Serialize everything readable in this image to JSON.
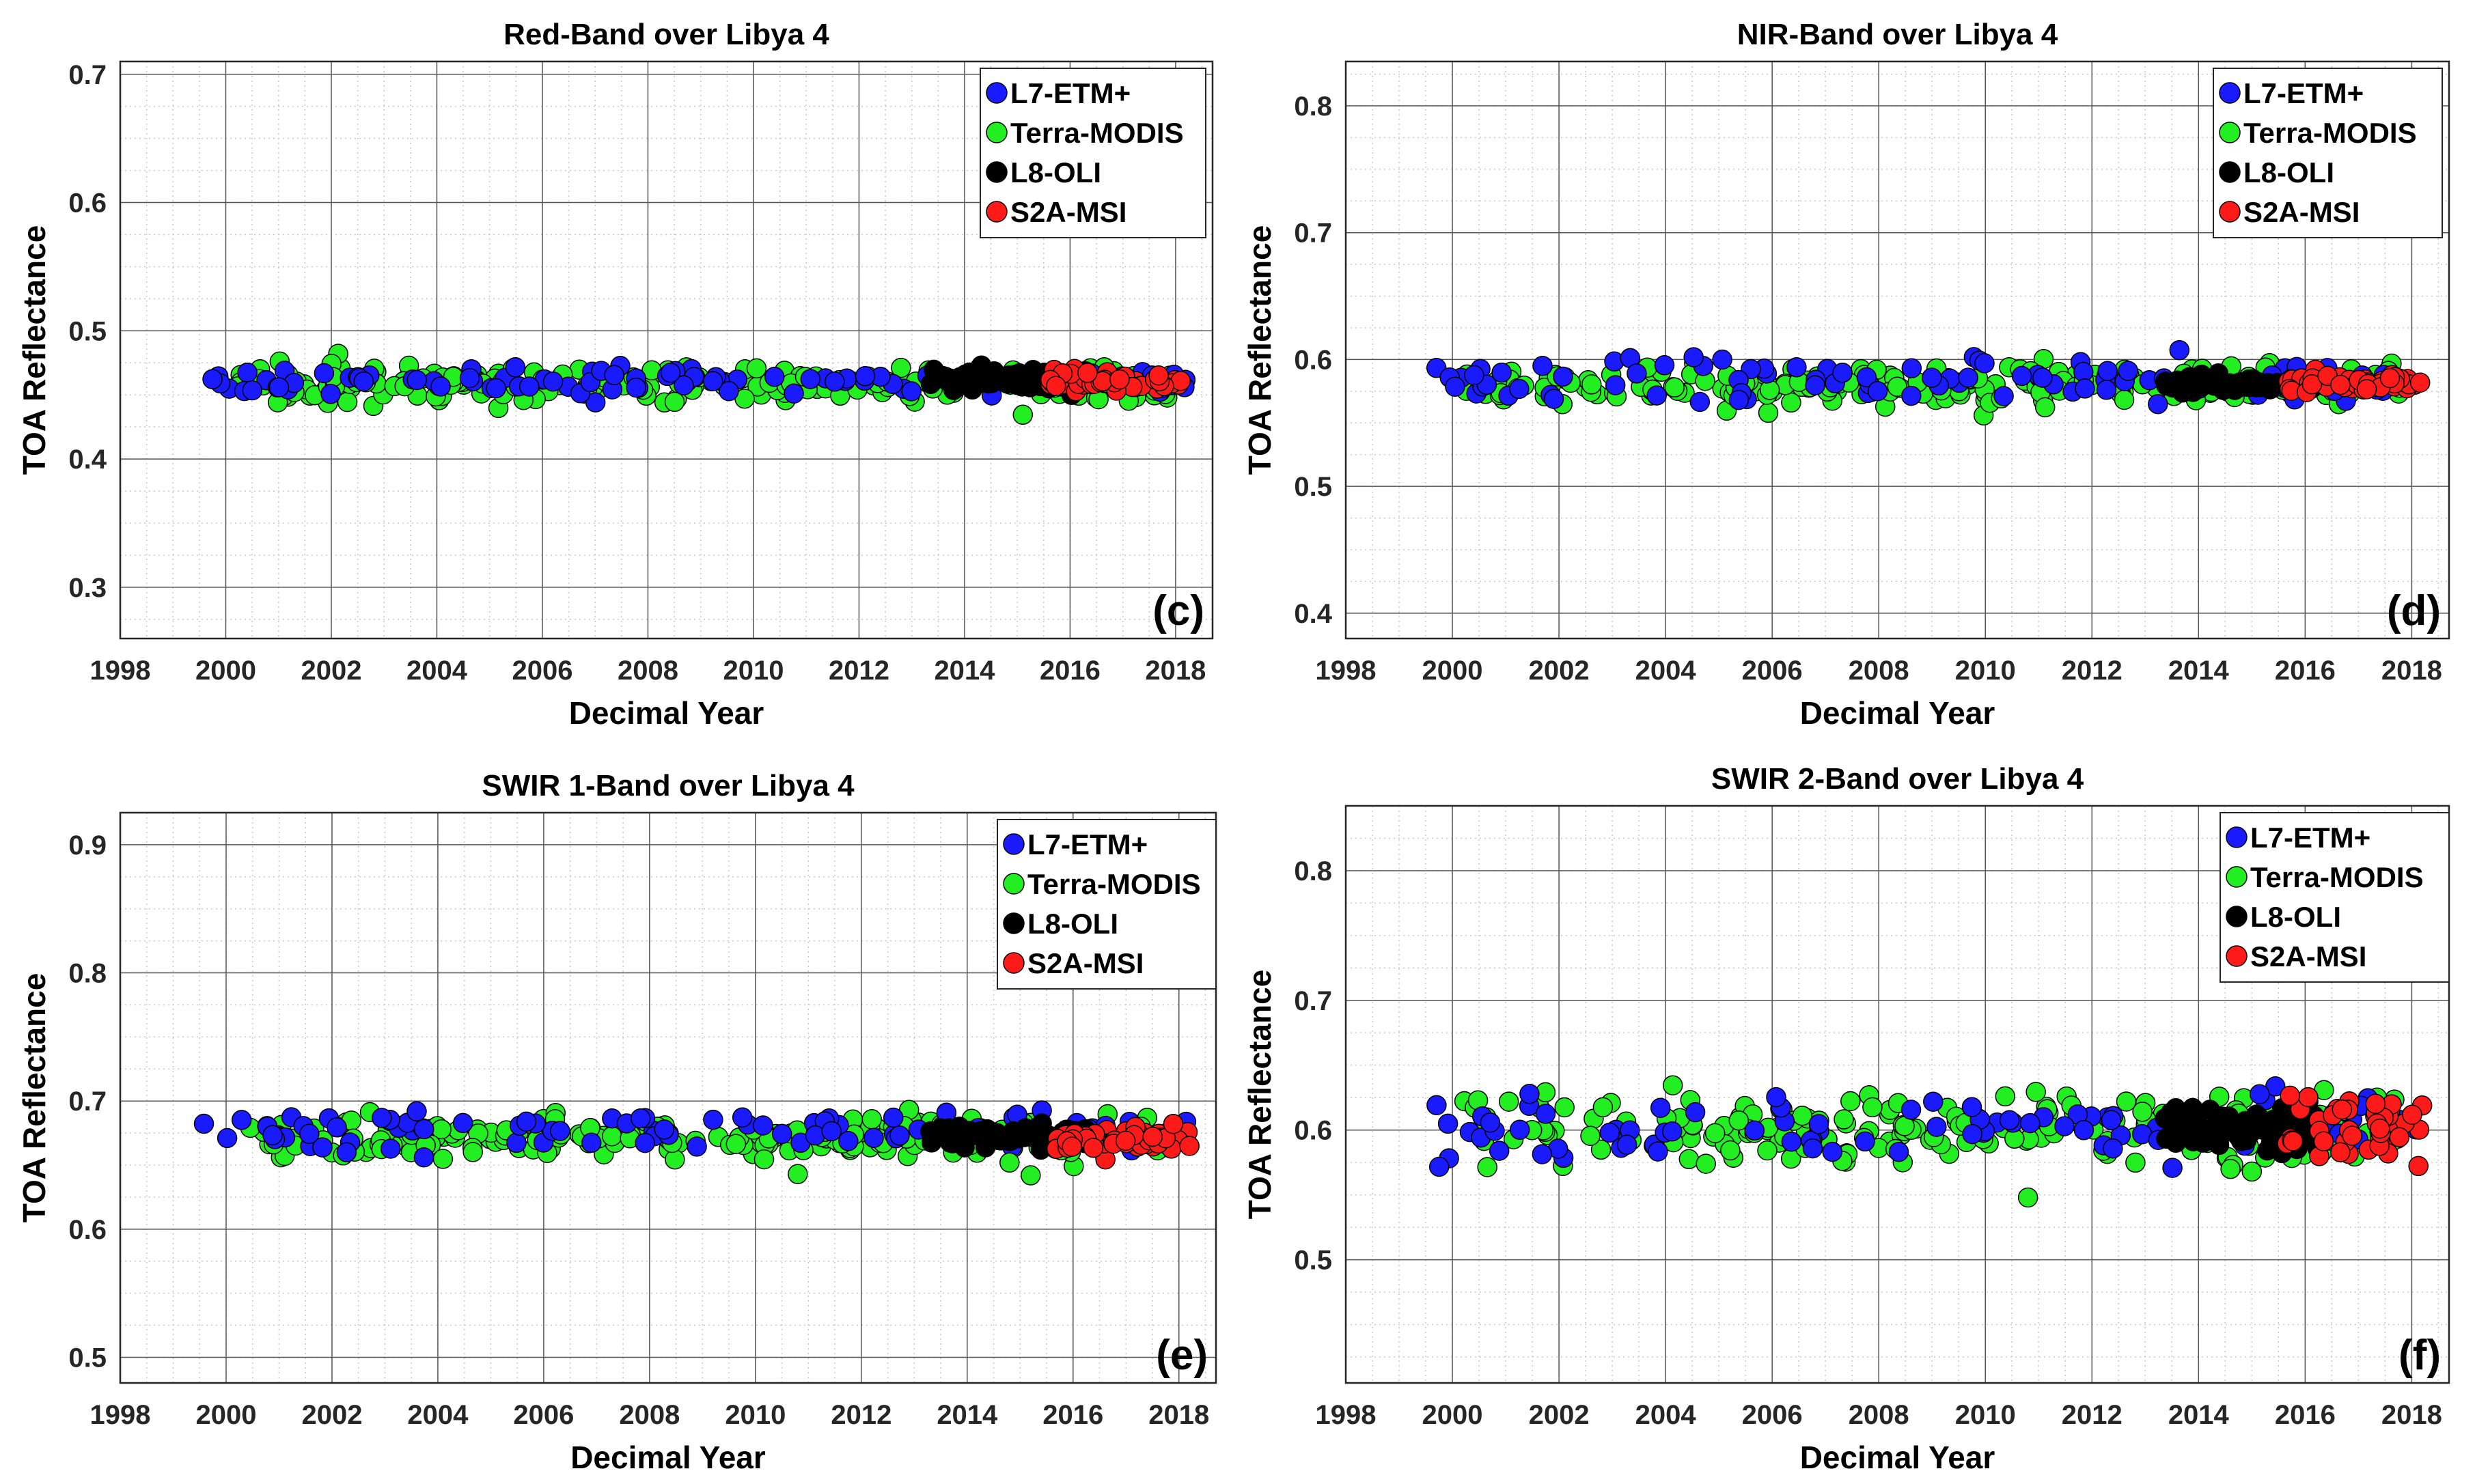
{
  "legend_entries": [
    {
      "name": "L7-ETM+",
      "color": "#1a1aff"
    },
    {
      "name": "Terra-MODIS",
      "color": "#22ee22"
    },
    {
      "name": "L8-OLI",
      "color": "#000000"
    },
    {
      "name": "S2A-MSI",
      "color": "#ff1a1a"
    }
  ],
  "chart_data": [
    {
      "type": "scatter",
      "panel_label": "(c)",
      "title": "Red-Band over Libya 4",
      "xlabel": "Decimal Year",
      "ylabel": "TOA Reflectance",
      "xlim": [
        1998,
        2018.7
      ],
      "ylim": [
        0.26,
        0.71
      ],
      "xticks": [
        1998,
        2000,
        2002,
        2004,
        2006,
        2008,
        2010,
        2012,
        2014,
        2016,
        2018
      ],
      "yticks": [
        0.3,
        0.4,
        0.5,
        0.6,
        0.7
      ],
      "grid": true,
      "legend_position": "top-right",
      "series": [
        {
          "name": "L7-ETM+",
          "x_range": [
            1999.5,
            2018.2
          ],
          "mean": 0.461,
          "spread": 0.005
        },
        {
          "name": "Terra-MODIS",
          "x_range": [
            2000.2,
            2017.9
          ],
          "mean": 0.459,
          "spread": 0.007
        },
        {
          "name": "L8-OLI",
          "x_range": [
            2013.3,
            2016.3
          ],
          "mean": 0.461,
          "spread": 0.004
        },
        {
          "name": "S2A-MSI",
          "x_range": [
            2015.6,
            2018.2
          ],
          "mean": 0.461,
          "spread": 0.004
        }
      ]
    },
    {
      "type": "scatter",
      "panel_label": "(d)",
      "title": "NIR-Band over Libya 4",
      "xlabel": "Decimal Year",
      "ylabel": "TOA Reflectance",
      "xlim": [
        1998,
        2018.7
      ],
      "ylim": [
        0.38,
        0.835
      ],
      "xticks": [
        1998,
        2000,
        2002,
        2004,
        2006,
        2008,
        2010,
        2012,
        2014,
        2016,
        2018
      ],
      "yticks": [
        0.4,
        0.5,
        0.6,
        0.7,
        0.8
      ],
      "grid": true,
      "legend_position": "top-right",
      "series": [
        {
          "name": "L7-ETM+",
          "x_range": [
            1999.5,
            2018.2
          ],
          "mean": 0.583,
          "spread": 0.011
        },
        {
          "name": "Terra-MODIS",
          "x_range": [
            2000.2,
            2017.9
          ],
          "mean": 0.58,
          "spread": 0.008
        },
        {
          "name": "L8-OLI",
          "x_range": [
            2013.3,
            2016.3
          ],
          "mean": 0.581,
          "spread": 0.003
        },
        {
          "name": "S2A-MSI",
          "x_range": [
            2015.6,
            2018.2
          ],
          "mean": 0.582,
          "spread": 0.004
        }
      ]
    },
    {
      "type": "scatter",
      "panel_label": "(e)",
      "title": "SWIR 1-Band over Libya 4",
      "xlabel": "Decimal Year",
      "ylabel": "TOA Reflectance",
      "xlim": [
        1998,
        2018.7
      ],
      "ylim": [
        0.48,
        0.925
      ],
      "xticks": [
        1998,
        2000,
        2002,
        2004,
        2006,
        2008,
        2010,
        2012,
        2014,
        2016,
        2018
      ],
      "yticks": [
        0.5,
        0.6,
        0.7,
        0.8,
        0.9
      ],
      "grid": true,
      "legend_position": "top-right",
      "series": [
        {
          "name": "L7-ETM+",
          "x_range": [
            1999.5,
            2018.2
          ],
          "mean": 0.676,
          "spread": 0.008
        },
        {
          "name": "Terra-MODIS",
          "x_range": [
            2000.2,
            2017.9
          ],
          "mean": 0.672,
          "spread": 0.008
        },
        {
          "name": "L8-OLI",
          "x_range": [
            2013.3,
            2016.3
          ],
          "mean": 0.673,
          "spread": 0.004
        },
        {
          "name": "S2A-MSI",
          "x_range": [
            2015.6,
            2018.2
          ],
          "mean": 0.671,
          "spread": 0.005
        }
      ]
    },
    {
      "type": "scatter",
      "panel_label": "(f)",
      "title": "SWIR 2-Band over Libya 4",
      "xlabel": "Decimal Year",
      "ylabel": "TOA Reflectance",
      "xlim": [
        1998,
        2018.7
      ],
      "ylim": [
        0.405,
        0.85
      ],
      "xticks": [
        1998,
        2000,
        2002,
        2004,
        2006,
        2008,
        2010,
        2012,
        2014,
        2016,
        2018
      ],
      "yticks": [
        0.5,
        0.6,
        0.7,
        0.8
      ],
      "grid": true,
      "legend_position": "top-right",
      "series": [
        {
          "name": "L7-ETM+",
          "x_range": [
            1999.5,
            2018.2
          ],
          "mean": 0.602,
          "spread": 0.013
        },
        {
          "name": "Terra-MODIS",
          "x_range": [
            2000.2,
            2017.9
          ],
          "mean": 0.6,
          "spread": 0.013
        },
        {
          "name": "L8-OLI",
          "x_range": [
            2013.3,
            2016.3
          ],
          "mean": 0.601,
          "spread": 0.01
        },
        {
          "name": "S2A-MSI",
          "x_range": [
            2015.6,
            2018.2
          ],
          "mean": 0.602,
          "spread": 0.011
        }
      ]
    }
  ]
}
